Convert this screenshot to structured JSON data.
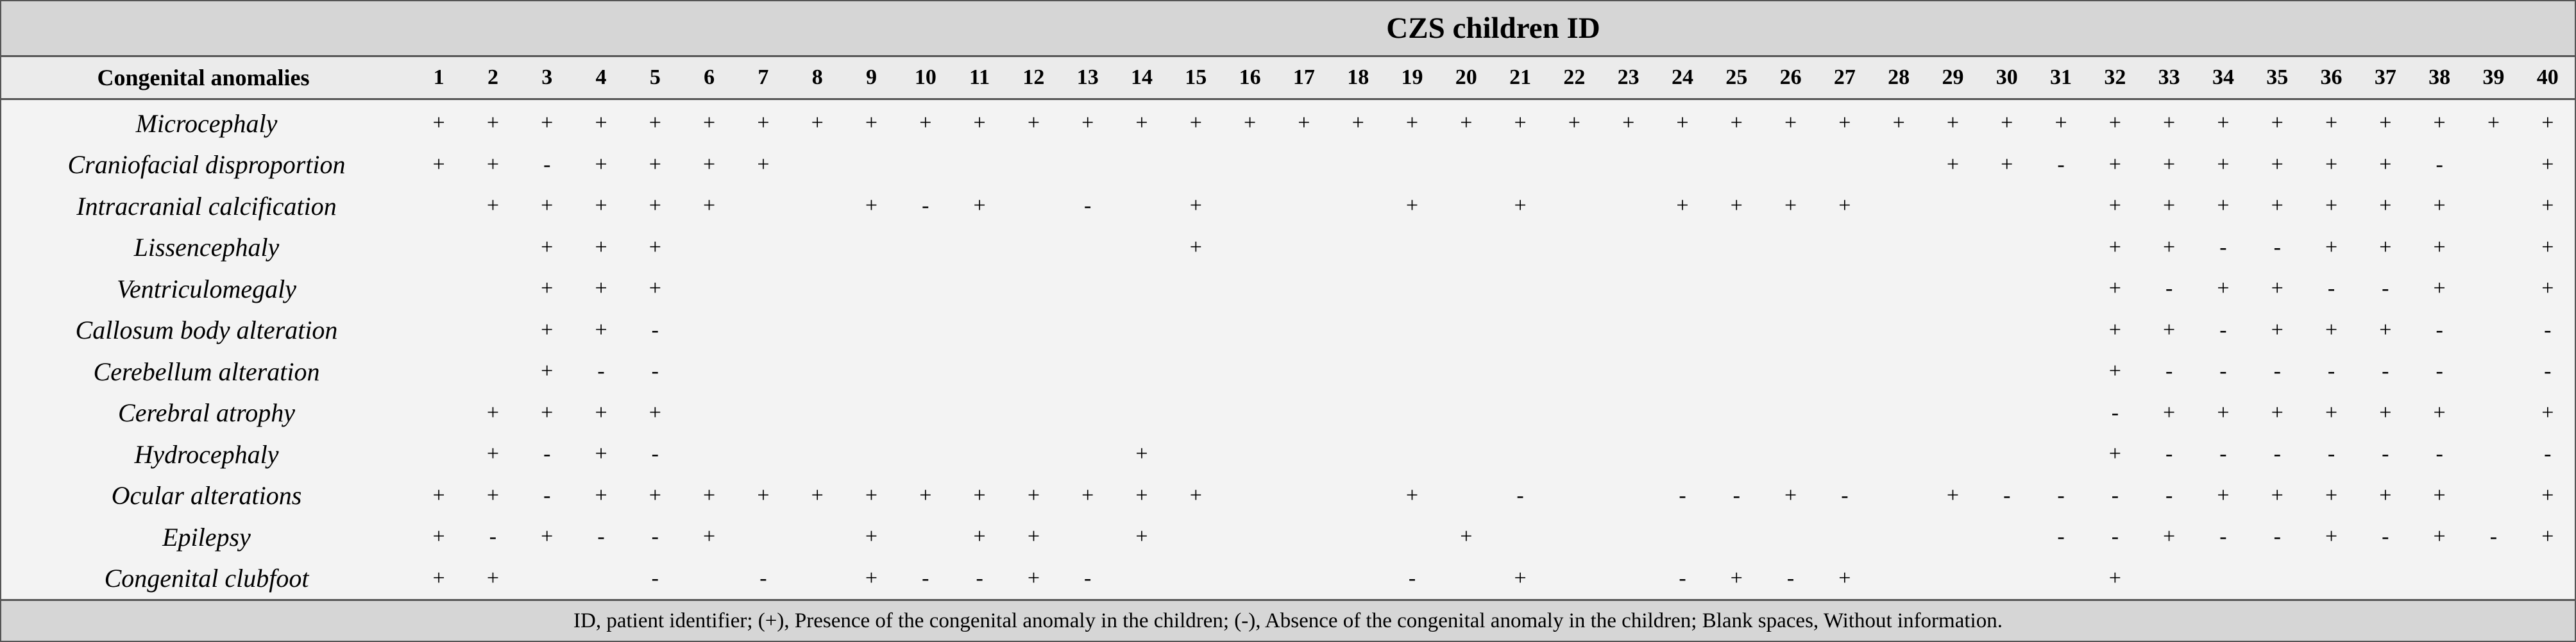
{
  "table": {
    "title": "CZS children ID",
    "row_header_label": "Congenital anomalies",
    "ids": [
      "1",
      "2",
      "3",
      "4",
      "5",
      "6",
      "7",
      "8",
      "9",
      "10",
      "11",
      "12",
      "13",
      "14",
      "15",
      "16",
      "17",
      "18",
      "19",
      "20",
      "21",
      "22",
      "23",
      "24",
      "25",
      "26",
      "27",
      "28",
      "29",
      "30",
      "31",
      "32",
      "33",
      "34",
      "35",
      "36",
      "37",
      "38",
      "39",
      "40"
    ],
    "rows": [
      {
        "label": "Microcephaly",
        "cells": [
          "+",
          "+",
          "+",
          "+",
          "+",
          "+",
          "+",
          "+",
          "+",
          "+",
          "+",
          "+",
          "+",
          "+",
          "+",
          "+",
          "+",
          "+",
          "+",
          "+",
          "+",
          "+",
          "+",
          "+",
          "+",
          "+",
          "+",
          "+",
          "+",
          "+",
          "+",
          "+",
          "+",
          "+",
          "+",
          "+",
          "+",
          "+",
          "+",
          "+"
        ]
      },
      {
        "label": "Craniofacial disproportion",
        "cells": [
          "+",
          "+",
          "-",
          "+",
          "+",
          "+",
          "+",
          "",
          "",
          "",
          "",
          "",
          "",
          "",
          "",
          "",
          "",
          "",
          "",
          "",
          "",
          "",
          "",
          "",
          "",
          "",
          "",
          "",
          "+",
          "+",
          "-",
          "+",
          "+",
          "+",
          "+",
          "+",
          "+",
          "-",
          "",
          "+"
        ]
      },
      {
        "label": "Intracranial calcification",
        "cells": [
          "",
          "+",
          "+",
          "+",
          "+",
          "+",
          "",
          "",
          "+",
          "-",
          "+",
          "",
          "-",
          "",
          "+",
          "",
          "",
          "",
          "+",
          "",
          "+",
          "",
          "",
          "+",
          "+",
          "+",
          "+",
          "",
          "",
          "",
          "",
          "+",
          "+",
          "+",
          "+",
          "+",
          "+",
          "+",
          "",
          "+"
        ]
      },
      {
        "label": "Lissencephaly",
        "cells": [
          "",
          "",
          "+",
          "+",
          "+",
          "",
          "",
          "",
          "",
          "",
          "",
          "",
          "",
          "",
          "+",
          "",
          "",
          "",
          "",
          "",
          "",
          "",
          "",
          "",
          "",
          "",
          "",
          "",
          "",
          "",
          "",
          "+",
          "+",
          "-",
          "-",
          "+",
          "+",
          "+",
          "",
          "+"
        ]
      },
      {
        "label": "Ventriculomegaly",
        "cells": [
          "",
          "",
          "+",
          "+",
          "+",
          "",
          "",
          "",
          "",
          "",
          "",
          "",
          "",
          "",
          "",
          "",
          "",
          "",
          "",
          "",
          "",
          "",
          "",
          "",
          "",
          "",
          "",
          "",
          "",
          "",
          "",
          "+",
          "-",
          "+",
          "+",
          "-",
          "-",
          "+",
          "",
          "+"
        ]
      },
      {
        "label": "Callosum body alteration",
        "cells": [
          "",
          "",
          "+",
          "+",
          "-",
          "",
          "",
          "",
          "",
          "",
          "",
          "",
          "",
          "",
          "",
          "",
          "",
          "",
          "",
          "",
          "",
          "",
          "",
          "",
          "",
          "",
          "",
          "",
          "",
          "",
          "",
          "+",
          "+",
          "-",
          "+",
          "+",
          "+",
          "-",
          "",
          "-"
        ]
      },
      {
        "label": "Cerebellum alteration",
        "cells": [
          "",
          "",
          "+",
          "-",
          "-",
          "",
          "",
          "",
          "",
          "",
          "",
          "",
          "",
          "",
          "",
          "",
          "",
          "",
          "",
          "",
          "",
          "",
          "",
          "",
          "",
          "",
          "",
          "",
          "",
          "",
          "",
          "+",
          "-",
          "-",
          "-",
          "-",
          "-",
          "-",
          "",
          "-"
        ]
      },
      {
        "label": "Cerebral atrophy",
        "cells": [
          "",
          "+",
          "+",
          "+",
          "+",
          "",
          "",
          "",
          "",
          "",
          "",
          "",
          "",
          "",
          "",
          "",
          "",
          "",
          "",
          "",
          "",
          "",
          "",
          "",
          "",
          "",
          "",
          "",
          "",
          "",
          "",
          "-",
          "+",
          "+",
          "+",
          "+",
          "+",
          "+",
          "",
          "+"
        ]
      },
      {
        "label": "Hydrocephaly",
        "cells": [
          "",
          "+",
          "-",
          "+",
          "-",
          "",
          "",
          "",
          "",
          "",
          "",
          "",
          "",
          "+",
          "",
          "",
          "",
          "",
          "",
          "",
          "",
          "",
          "",
          "",
          "",
          "",
          "",
          "",
          "",
          "",
          "",
          "+",
          "-",
          "-",
          "-",
          "-",
          "-",
          "-",
          "",
          "-"
        ]
      },
      {
        "label": "Ocular alterations",
        "cells": [
          "+",
          "+",
          "-",
          "+",
          "+",
          "+",
          "+",
          "+",
          "+",
          "+",
          "+",
          "+",
          "+",
          "+",
          "+",
          "",
          "",
          "",
          "+",
          "",
          "-",
          "",
          "",
          "-",
          "-",
          "+",
          "-",
          "",
          "+",
          "-",
          "-",
          "-",
          "-",
          "+",
          "+",
          "+",
          "+",
          "+",
          "",
          "+"
        ]
      },
      {
        "label": "Epilepsy",
        "cells": [
          "+",
          "-",
          "+",
          "-",
          "-",
          "+",
          "",
          "",
          "+",
          "",
          "+",
          "+",
          "",
          "+",
          "",
          "",
          "",
          "",
          "",
          "+",
          "",
          "",
          "",
          "",
          "",
          "",
          "",
          "",
          "",
          "",
          "-",
          "-",
          "+",
          "-",
          "-",
          "+",
          "-",
          "+",
          "-",
          "+"
        ]
      },
      {
        "label": "Congenital clubfoot",
        "cells": [
          "+",
          "+",
          "",
          "",
          "-",
          "",
          "-",
          "",
          "+",
          "-",
          "-",
          "+",
          "-",
          "",
          "",
          "",
          "",
          "",
          "-",
          "",
          "+",
          "",
          "",
          "-",
          "+",
          "-",
          "+",
          "",
          "",
          "",
          "",
          "+",
          "",
          "",
          "",
          "",
          "",
          "",
          "",
          ""
        ]
      }
    ],
    "footnote": "ID, patient identifier; (+), Presence of the congenital anomaly in the children; (-), Absence of the congenital anomaly in the children; Blank spaces, Without information."
  }
}
